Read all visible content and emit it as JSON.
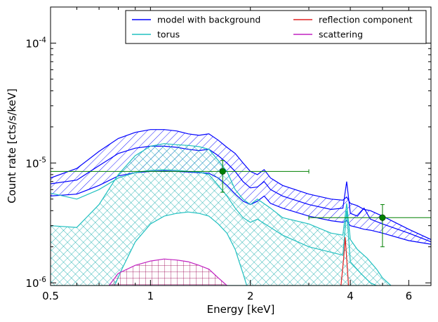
{
  "chart_data": {
    "type": "line",
    "xlabel": "Energy [keV]",
    "ylabel": "Count rate [cts/s/keV]",
    "xscale": "log",
    "yscale": "log",
    "xlim": [
      0.5,
      7.0
    ],
    "ylim": [
      9.5e-07,
      0.0002
    ],
    "x_ticks": [
      {
        "value": 0.5,
        "label": "0.5"
      },
      {
        "value": 1,
        "label": "1"
      },
      {
        "value": 2,
        "label": "2"
      },
      {
        "value": 4,
        "label": "4"
      },
      {
        "value": 6,
        "label": "6"
      }
    ],
    "y_ticks": [
      {
        "value": 1e-06,
        "mantissa": "10",
        "exp": "-6"
      },
      {
        "value": 1e-05,
        "mantissa": "10",
        "exp": "-5"
      },
      {
        "value": 0.0001,
        "mantissa": "10",
        "exp": "-4"
      }
    ],
    "legend": {
      "placement": "top-right",
      "entries": [
        {
          "label": "model with background",
          "color": "#0000ff"
        },
        {
          "label": "reflection component",
          "color": "#e02020"
        },
        {
          "label": "torus",
          "color": "#20c0c0"
        },
        {
          "label": "scattering",
          "color": "#c020c0"
        }
      ]
    },
    "bands": [
      {
        "name": "model with background",
        "color": "#0000ff",
        "hatch": "diagonal",
        "upper": [
          [
            0.5,
            7.5e-06
          ],
          [
            0.6,
            9e-06
          ],
          [
            0.7,
            1.25e-05
          ],
          [
            0.8,
            1.6e-05
          ],
          [
            0.9,
            1.8e-05
          ],
          [
            1.0,
            1.9e-05
          ],
          [
            1.1,
            1.9e-05
          ],
          [
            1.2,
            1.85e-05
          ],
          [
            1.3,
            1.75e-05
          ],
          [
            1.4,
            1.7e-05
          ],
          [
            1.5,
            1.75e-05
          ],
          [
            1.6,
            1.55e-05
          ],
          [
            1.7,
            1.35e-05
          ],
          [
            1.8,
            1.2e-05
          ],
          [
            1.9,
            1e-05
          ],
          [
            2.0,
            8.5e-06
          ],
          [
            2.1,
            8e-06
          ],
          [
            2.2,
            8.8e-06
          ],
          [
            2.3,
            7.5e-06
          ],
          [
            2.5,
            6.5e-06
          ],
          [
            3.0,
            5.5e-06
          ],
          [
            3.5,
            5e-06
          ],
          [
            3.8,
            4.9e-06
          ],
          [
            3.9,
            5.2e-06
          ],
          [
            4.0,
            4.6e-06
          ],
          [
            4.2,
            4.4e-06
          ],
          [
            4.4,
            4.1e-06
          ],
          [
            4.6,
            4e-06
          ],
          [
            5.0,
            3.6e-06
          ],
          [
            6.0,
            2.8e-06
          ],
          [
            7.0,
            2.3e-06
          ]
        ],
        "lower": [
          [
            0.5,
            5.3e-06
          ],
          [
            0.6,
            5.5e-06
          ],
          [
            0.7,
            6.5e-06
          ],
          [
            0.8,
            7.8e-06
          ],
          [
            0.9,
            8.3e-06
          ],
          [
            1.0,
            8.5e-06
          ],
          [
            1.1,
            8.6e-06
          ],
          [
            1.2,
            8.5e-06
          ],
          [
            1.3,
            8.4e-06
          ],
          [
            1.4,
            8.3e-06
          ],
          [
            1.5,
            8.2e-06
          ],
          [
            1.6,
            7.5e-06
          ],
          [
            1.7,
            6.5e-06
          ],
          [
            1.8,
            5.5e-06
          ],
          [
            1.9,
            4.8e-06
          ],
          [
            2.0,
            4.5e-06
          ],
          [
            2.1,
            4.8e-06
          ],
          [
            2.2,
            5.3e-06
          ],
          [
            2.3,
            4.6e-06
          ],
          [
            2.5,
            4.2e-06
          ],
          [
            3.0,
            3.6e-06
          ],
          [
            3.5,
            3.3e-06
          ],
          [
            3.8,
            3.2e-06
          ],
          [
            3.9,
            3.3e-06
          ],
          [
            4.0,
            3e-06
          ],
          [
            4.2,
            2.9e-06
          ],
          [
            4.4,
            2.8e-06
          ],
          [
            4.6,
            2.75e-06
          ],
          [
            5.0,
            2.6e-06
          ],
          [
            6.0,
            2.25e-06
          ],
          [
            7.0,
            2.1e-06
          ]
        ],
        "middle": [
          [
            0.5,
            6.7e-06
          ],
          [
            0.6,
            7.2e-06
          ],
          [
            0.7,
            9.5e-06
          ],
          [
            0.8,
            1.2e-05
          ],
          [
            0.9,
            1.33e-05
          ],
          [
            1.0,
            1.38e-05
          ],
          [
            1.1,
            1.38e-05
          ],
          [
            1.2,
            1.35e-05
          ],
          [
            1.3,
            1.3e-05
          ],
          [
            1.4,
            1.27e-05
          ],
          [
            1.5,
            1.3e-05
          ],
          [
            1.6,
            1.15e-05
          ],
          [
            1.7,
            1e-05
          ],
          [
            1.8,
            8.5e-06
          ],
          [
            1.9,
            7e-06
          ],
          [
            2.0,
            6.2e-06
          ],
          [
            2.1,
            6.3e-06
          ],
          [
            2.2,
            7e-06
          ],
          [
            2.3,
            6e-06
          ],
          [
            2.5,
            5.3e-06
          ],
          [
            3.0,
            4.5e-06
          ],
          [
            3.5,
            4.1e-06
          ],
          [
            3.8,
            4.2e-06
          ],
          [
            3.9,
            7e-06
          ],
          [
            4.0,
            3.8e-06
          ],
          [
            4.2,
            3.6e-06
          ],
          [
            4.4,
            4.2e-06
          ],
          [
            4.6,
            3.4e-06
          ],
          [
            5.0,
            3.1e-06
          ],
          [
            6.0,
            2.6e-06
          ],
          [
            7.0,
            2.2e-06
          ]
        ]
      },
      {
        "name": "torus",
        "color": "#20c0c0",
        "hatch": "crosshatch",
        "upper": [
          [
            0.5,
            3e-06
          ],
          [
            0.6,
            2.9e-06
          ],
          [
            0.7,
            4.5e-06
          ],
          [
            0.8,
            8e-06
          ],
          [
            0.9,
            1.15e-05
          ],
          [
            1.0,
            1.38e-05
          ],
          [
            1.1,
            1.45e-05
          ],
          [
            1.2,
            1.42e-05
          ],
          [
            1.3,
            1.4e-05
          ],
          [
            1.4,
            1.37e-05
          ],
          [
            1.5,
            1.3e-05
          ],
          [
            1.6,
            1.05e-05
          ],
          [
            1.7,
            8.5e-06
          ],
          [
            1.8,
            6e-06
          ],
          [
            1.9,
            5e-06
          ],
          [
            2.0,
            4.5e-06
          ],
          [
            2.1,
            5e-06
          ],
          [
            2.3,
            4.2e-06
          ],
          [
            2.5,
            3.5e-06
          ],
          [
            3.0,
            3.1e-06
          ],
          [
            3.5,
            2.6e-06
          ],
          [
            3.8,
            2.5e-06
          ],
          [
            3.9,
            4.6e-06
          ],
          [
            4.0,
            2.3e-06
          ],
          [
            4.2,
            1.9e-06
          ],
          [
            4.5,
            1.6e-06
          ],
          [
            4.8,
            1.3e-06
          ],
          [
            5.0,
            1.1e-06
          ],
          [
            5.3,
            9.5e-07
          ]
        ],
        "lower": [
          [
            0.5,
            9.5e-07
          ],
          [
            1.3,
            9.5e-07
          ],
          [
            1.4,
            9.5e-07
          ],
          [
            5.3,
            9.5e-07
          ]
        ],
        "middle": [
          [
            0.5,
            5.6e-06
          ],
          [
            0.6,
            5e-06
          ],
          [
            0.7,
            6e-06
          ],
          [
            0.8,
            7.5e-06
          ],
          [
            0.9,
            8.3e-06
          ],
          [
            1.0,
            8.7e-06
          ],
          [
            1.1,
            8.8e-06
          ],
          [
            1.2,
            8.7e-06
          ],
          [
            1.3,
            8.5e-06
          ],
          [
            1.4,
            8.4e-06
          ],
          [
            1.5,
            8e-06
          ],
          [
            1.6,
            6.5e-06
          ],
          [
            1.7,
            5.3e-06
          ],
          [
            1.8,
            4.2e-06
          ],
          [
            1.9,
            3.5e-06
          ],
          [
            2.0,
            3.2e-06
          ],
          [
            2.1,
            3.4e-06
          ],
          [
            2.3,
            2.9e-06
          ],
          [
            2.5,
            2.5e-06
          ],
          [
            3.0,
            2e-06
          ],
          [
            3.5,
            1.8e-06
          ],
          [
            3.8,
            1.7e-06
          ],
          [
            3.9,
            4e-06
          ],
          [
            4.0,
            1.5e-06
          ],
          [
            4.3,
            1.2e-06
          ],
          [
            4.6,
            1e-06
          ],
          [
            4.8,
            9.5e-07
          ]
        ],
        "inner": [
          [
            0.78,
            9.5e-07
          ],
          [
            0.82,
            1.3e-06
          ],
          [
            0.9,
            2.2e-06
          ],
          [
            1.0,
            3.1e-06
          ],
          [
            1.1,
            3.6e-06
          ],
          [
            1.2,
            3.8e-06
          ],
          [
            1.3,
            3.9e-06
          ],
          [
            1.4,
            3.8e-06
          ],
          [
            1.5,
            3.6e-06
          ],
          [
            1.6,
            3.1e-06
          ],
          [
            1.7,
            2.6e-06
          ],
          [
            1.8,
            1.9e-06
          ],
          [
            1.85,
            1.5e-06
          ],
          [
            1.9,
            1.2e-06
          ],
          [
            1.95,
            9.5e-07
          ]
        ]
      },
      {
        "name": "scattering",
        "color": "#c020c0",
        "hatch": "grid",
        "upper": [
          [
            0.75,
            9.5e-07
          ],
          [
            0.8,
            1.2e-06
          ],
          [
            0.9,
            1.4e-06
          ],
          [
            1.0,
            1.52e-06
          ],
          [
            1.1,
            1.58e-06
          ],
          [
            1.2,
            1.55e-06
          ],
          [
            1.3,
            1.5e-06
          ],
          [
            1.4,
            1.4e-06
          ],
          [
            1.5,
            1.3e-06
          ],
          [
            1.6,
            1.1e-06
          ],
          [
            1.7,
            9.5e-07
          ]
        ],
        "lower": [
          [
            0.75,
            9.5e-07
          ],
          [
            1.7,
            9.5e-07
          ]
        ]
      },
      {
        "name": "reflection component",
        "color": "#e02020",
        "hatch": "none",
        "upper": [
          [
            3.75,
            9.5e-07
          ],
          [
            3.82,
            1.6e-06
          ],
          [
            3.86,
            2.4e-06
          ],
          [
            3.9,
            1.6e-06
          ],
          [
            3.95,
            9.5e-07
          ]
        ],
        "lower": [
          [
            3.75,
            9.5e-07
          ],
          [
            3.95,
            9.5e-07
          ]
        ]
      }
    ],
    "data_points": [
      {
        "x": 1.65,
        "y": 8.5e-06,
        "xerr": [
          0.5,
          3.0
        ],
        "yerr": [
          5.7e-06,
          1.05e-05
        ],
        "color": "#008000"
      },
      {
        "x": 5.0,
        "y": 3.5e-06,
        "xerr": [
          3.0,
          7.0
        ],
        "yerr": [
          2e-06,
          4.5e-06
        ],
        "color": "#008000"
      }
    ]
  }
}
